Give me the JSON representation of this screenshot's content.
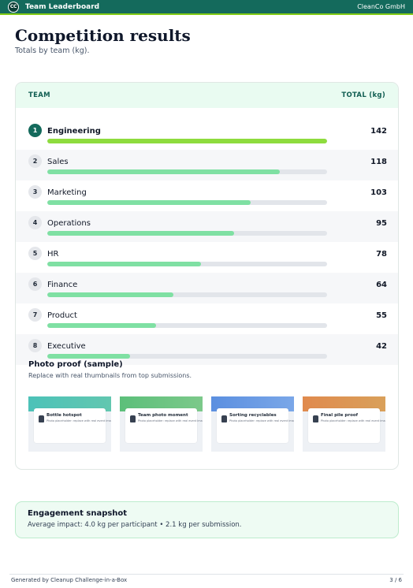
{
  "header": {
    "logo_text": "CC",
    "app_title": "Team Leaderboard",
    "org": "CleanCo GmbH",
    "accent": "#146a5c",
    "accent_line": "#84cc16"
  },
  "page": {
    "title": "Competition results",
    "subtitle": "Totals by team (kg)."
  },
  "table": {
    "col_team": "TEAM",
    "col_total": "TOTAL (kg)",
    "max": 142,
    "rows": [
      {
        "rank": "1",
        "team": "Engineering",
        "total": "142",
        "value": 142
      },
      {
        "rank": "2",
        "team": "Sales",
        "total": "118",
        "value": 118
      },
      {
        "rank": "3",
        "team": "Marketing",
        "total": "103",
        "value": 103
      },
      {
        "rank": "4",
        "team": "Operations",
        "total": "95",
        "value": 95
      },
      {
        "rank": "5",
        "team": "HR",
        "total": "78",
        "value": 78
      },
      {
        "rank": "6",
        "team": "Finance",
        "total": "64",
        "value": 64
      },
      {
        "rank": "7",
        "team": "Product",
        "total": "55",
        "value": 55
      },
      {
        "rank": "8",
        "team": "Executive",
        "total": "42",
        "value": 42
      }
    ]
  },
  "photos": {
    "title": "Photo proof (sample)",
    "note": "Replace with real thumbnails from top submissions.",
    "items": [
      {
        "label": "Bottle hotspot",
        "sub": "Photo placeholder: replace with real event image",
        "color_a": "#4cc2b8",
        "color_b": "#62c7b0"
      },
      {
        "label": "Team photo moment",
        "sub": "Photo placeholder: replace with real event image",
        "color_a": "#5cbf7a",
        "color_b": "#7cc98a"
      },
      {
        "label": "Sorting recyclables",
        "sub": "Photo placeholder: replace with real event image",
        "color_a": "#5b8fe0",
        "color_b": "#7aa7e8"
      },
      {
        "label": "Final pile proof",
        "sub": "Photo placeholder: replace with real event image",
        "color_a": "#e08a4e",
        "color_b": "#d9a05a"
      }
    ]
  },
  "snapshot": {
    "title": "Engagement snapshot",
    "text": "Average impact: 4.0 kg per participant • 2.1 kg per submission."
  },
  "footer": {
    "left": "Generated by Cleanup Challenge-in-a-Box",
    "right": "3 / 6"
  }
}
